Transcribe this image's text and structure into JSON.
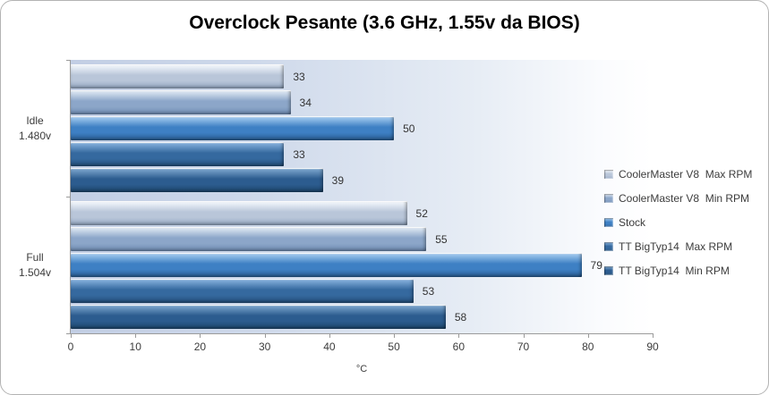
{
  "chart_data": {
    "type": "bar",
    "orientation": "horizontal",
    "title": "Overclock Pesante (3.6 GHz, 1.55v da BIOS)",
    "xlabel": "°C",
    "xlim": [
      0,
      90
    ],
    "x_ticks": [
      0,
      10,
      20,
      30,
      40,
      50,
      60,
      70,
      80,
      90
    ],
    "grid": false,
    "legend_position": "right",
    "data_labels": true,
    "categories": [
      {
        "lines": [
          "Idle",
          "1.480v"
        ]
      },
      {
        "lines": [
          "Full",
          "1.504v"
        ]
      }
    ],
    "series": [
      {
        "name": "CoolerMaster V8  Max RPM",
        "values": [
          33,
          52
        ],
        "colors": {
          "top": "#eef3f9",
          "mid": "#b9c6d9",
          "bottom": "#93a7c2"
        }
      },
      {
        "name": "CoolerMaster V8  Min RPM",
        "values": [
          34,
          55
        ],
        "colors": {
          "top": "#d8e3f0",
          "mid": "#8ca6c9",
          "bottom": "#6f8cb3"
        }
      },
      {
        "name": "Stock",
        "values": [
          50,
          79
        ],
        "colors": {
          "top": "#9cc5ec",
          "mid": "#3e80c4",
          "bottom": "#2a5e94"
        }
      },
      {
        "name": "TT BigTyp14  Max RPM",
        "values": [
          33,
          53
        ],
        "colors": {
          "top": "#7fabd8",
          "mid": "#35699f",
          "bottom": "#24507c"
        }
      },
      {
        "name": "TT BigTyp14  Min RPM",
        "values": [
          39,
          58
        ],
        "colors": {
          "top": "#76a0c9",
          "mid": "#2c5c8f",
          "bottom": "#1d466d"
        }
      }
    ],
    "plot_bg_gradient": [
      "#c2cee4",
      "#ffffff"
    ],
    "axis_color": "#9b9b9b"
  }
}
